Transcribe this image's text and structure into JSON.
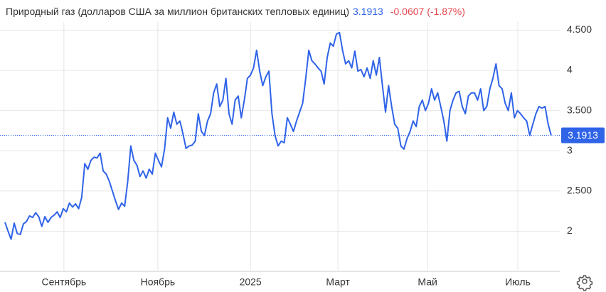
{
  "chart_data": {
    "type": "line",
    "title": "Природный газ (долларов США за миллион британских тепловых единиц)",
    "last_value": 3.1913,
    "change": "-0.0607 (-1.87%)",
    "color": "#2f63e8",
    "change_color": "#e5484d",
    "grid": true,
    "xlim": [
      0,
      178
    ],
    "xticks": [
      {
        "value": 19.2,
        "label": "Сентябрь"
      },
      {
        "value": 49.8,
        "label": "Ноябрь"
      },
      {
        "value": 80.0,
        "label": "2025"
      },
      {
        "value": 108.5,
        "label": "Март"
      },
      {
        "value": 137.7,
        "label": "Май"
      },
      {
        "value": 167.1,
        "label": "Июль"
      }
    ],
    "ylim": [
      1.5,
      4.6
    ],
    "yticks": [
      2,
      {
        "value": 2.5,
        "label": "2.500"
      },
      3,
      {
        "value": 3.5,
        "label": "3.500"
      },
      4,
      {
        "value": 4.5,
        "label": "4.500"
      }
    ],
    "values": [
      2.11,
      2.0,
      1.9,
      2.1,
      1.97,
      1.96,
      2.09,
      2.12,
      2.19,
      2.17,
      2.23,
      2.18,
      2.06,
      2.18,
      2.11,
      2.17,
      2.2,
      2.24,
      2.17,
      2.28,
      2.24,
      2.35,
      2.3,
      2.34,
      2.28,
      2.42,
      2.84,
      2.77,
      2.88,
      2.92,
      2.91,
      2.97,
      2.75,
      2.71,
      2.62,
      2.5,
      2.38,
      2.27,
      2.35,
      2.31,
      2.62,
      3.06,
      2.88,
      2.82,
      2.68,
      2.75,
      2.66,
      2.77,
      2.71,
      2.97,
      2.88,
      2.8,
      3.02,
      3.41,
      3.28,
      3.48,
      3.33,
      3.37,
      3.21,
      3.03,
      3.06,
      3.07,
      3.12,
      3.46,
      3.24,
      3.19,
      3.37,
      3.46,
      3.72,
      3.83,
      3.55,
      3.63,
      3.9,
      3.46,
      3.33,
      3.63,
      3.68,
      3.41,
      3.63,
      3.9,
      3.94,
      4.03,
      4.25,
      3.99,
      3.81,
      3.92,
      3.99,
      3.46,
      3.19,
      3.06,
      3.12,
      3.1,
      3.41,
      3.33,
      3.24,
      3.37,
      3.48,
      3.59,
      3.9,
      4.25,
      4.12,
      4.08,
      4.03,
      3.99,
      3.83,
      4.16,
      4.34,
      4.3,
      4.45,
      4.47,
      4.25,
      4.08,
      4.12,
      4.03,
      4.24,
      3.99,
      4.01,
      3.92,
      4.03,
      3.9,
      4.12,
      3.94,
      4.16,
      3.81,
      3.48,
      3.81,
      3.55,
      3.33,
      3.28,
      3.06,
      3.02,
      3.15,
      3.24,
      3.37,
      3.3,
      3.55,
      3.63,
      3.5,
      3.59,
      3.77,
      3.63,
      3.72,
      3.55,
      3.37,
      3.12,
      3.5,
      3.63,
      3.72,
      3.74,
      3.55,
      3.46,
      3.68,
      3.72,
      3.72,
      3.63,
      3.77,
      3.5,
      3.55,
      3.77,
      3.9,
      4.08,
      3.81,
      3.77,
      3.59,
      3.5,
      3.72,
      3.41,
      3.5,
      3.46,
      3.41,
      3.37,
      3.19,
      3.33,
      3.46,
      3.55,
      3.53,
      3.55,
      3.33,
      3.19
    ]
  }
}
